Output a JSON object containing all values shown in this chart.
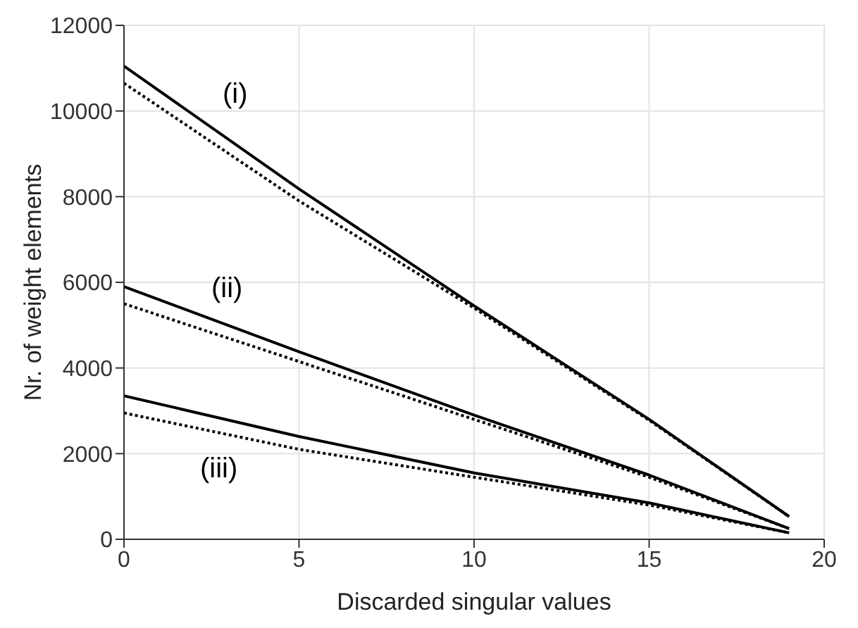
{
  "chart_data": {
    "type": "line",
    "xlabel": "Discarded singular values",
    "ylabel": "Nr. of weight elements",
    "x": [
      0,
      5,
      10,
      15,
      19
    ],
    "series": [
      {
        "color": "#000000",
        "line_style": "solid",
        "values": [
          11050,
          8180,
          5450,
          2800,
          530
        ]
      },
      {
        "color": "#000000",
        "line_style": "dotted",
        "values": [
          10650,
          7900,
          5400,
          2780,
          530
        ]
      },
      {
        "color": "#000000",
        "line_style": "solid",
        "values": [
          5900,
          4380,
          2900,
          1500,
          250
        ]
      },
      {
        "color": "#000000",
        "line_style": "dotted",
        "values": [
          5500,
          4150,
          2800,
          1450,
          250
        ]
      },
      {
        "color": "#000000",
        "line_style": "solid",
        "values": [
          3350,
          2400,
          1550,
          850,
          150
        ]
      },
      {
        "color": "#000000",
        "line_style": "dotted",
        "values": [
          2950,
          2100,
          1450,
          800,
          150
        ]
      }
    ],
    "annotations": [
      "(i)",
      "(ii)",
      "(iii)"
    ],
    "xlim": [
      0,
      20
    ],
    "xticks": [
      0,
      5,
      10,
      15,
      20
    ],
    "ylim": [
      0,
      12000
    ],
    "yticks": [
      0,
      2000,
      4000,
      6000,
      8000,
      10000,
      12000
    ],
    "grid": true,
    "marker": "none"
  }
}
